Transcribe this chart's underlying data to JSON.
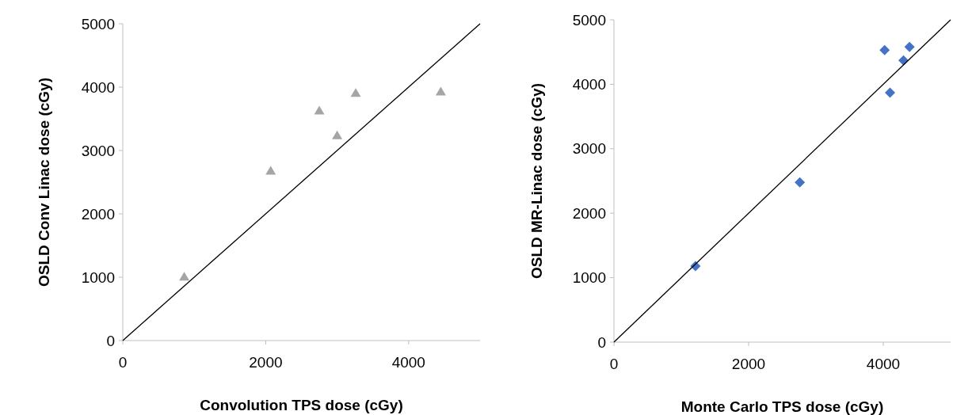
{
  "chart_data": [
    {
      "type": "scatter",
      "xlabel": "Convolution TPS dose (cGy)",
      "ylabel": "OSLD Conv Linac dose (cGy)",
      "xlim": [
        0,
        5000
      ],
      "ylim": [
        0,
        5000
      ],
      "xticks": [
        0,
        2000,
        4000
      ],
      "yticks": [
        0,
        1000,
        2000,
        3000,
        4000,
        5000
      ],
      "grid": false,
      "series": [
        {
          "type": "scatter",
          "color": "#a5a5a5",
          "marker": "triangle",
          "x": [
            860,
            2070,
            2750,
            3000,
            3260,
            4450
          ],
          "values": [
            1010,
            2680,
            3630,
            3240,
            3910,
            3930
          ]
        },
        {
          "type": "line",
          "color": "#000000",
          "marker": "none",
          "x": [
            0,
            5000
          ],
          "values": [
            0,
            5000
          ]
        }
      ]
    },
    {
      "type": "scatter",
      "xlabel": "Monte Carlo TPS dose (cGy)",
      "ylabel": "OSLD MR-Linac dose (cGy)",
      "xlim": [
        0,
        5000
      ],
      "ylim": [
        0,
        5000
      ],
      "xticks": [
        0,
        2000,
        4000
      ],
      "yticks": [
        0,
        1000,
        2000,
        3000,
        4000,
        5000
      ],
      "grid": false,
      "series": [
        {
          "type": "scatter",
          "color": "#4472c4",
          "marker": "diamond",
          "x": [
            1210,
            2760,
            4020,
            4390,
            4300,
            4100
          ],
          "values": [
            1180,
            2480,
            4530,
            4580,
            4370,
            3870
          ]
        },
        {
          "type": "line",
          "color": "#000000",
          "marker": "none",
          "x": [
            0,
            5000
          ],
          "values": [
            0,
            5000
          ]
        }
      ]
    }
  ]
}
